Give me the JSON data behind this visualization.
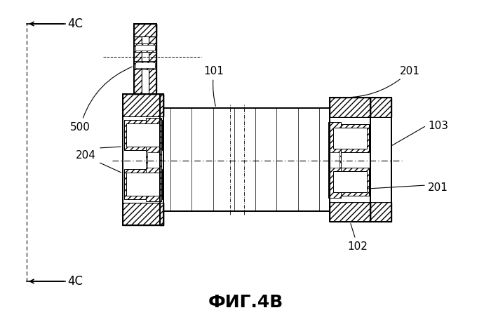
{
  "title": "ФИГ.4В",
  "title_fontsize": 18,
  "title_fontweight": "bold",
  "bg_color": "#ffffff",
  "line_color": "#000000",
  "labels": {
    "4C_top": "4C",
    "4C_bot": "4C",
    "500": "500",
    "101": "101",
    "201_top": "201",
    "201_bot": "201",
    "103": "103",
    "204": "204",
    "102": "102"
  },
  "fig_width": 7.0,
  "fig_height": 4.59,
  "dpi": 100
}
